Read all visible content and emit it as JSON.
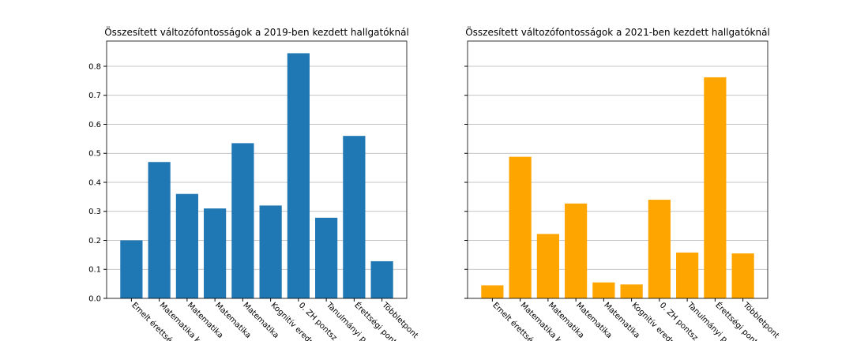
{
  "chart_data": [
    {
      "type": "bar",
      "title": "Összesített változófontosságok a 2019-ben kezdett hallgatóknál",
      "categories": [
        "Emelt érettségi",
        "Matematika k",
        "Matematika",
        "Matematika",
        "Matematika",
        "Kognitív eredm",
        "0. ZH pontsz",
        "Tanulmányi p",
        "Érettségi pont",
        "Többletpont"
      ],
      "values": [
        0.2,
        0.47,
        0.36,
        0.31,
        0.535,
        0.32,
        0.845,
        0.278,
        0.56,
        0.128
      ],
      "color": "#1f77b4",
      "ylim": [
        0,
        0.887
      ],
      "yticks": [
        {
          "value": 0,
          "label": "0.0"
        },
        0.1,
        0.2,
        0.3,
        0.4,
        0.5,
        0.6,
        0.7,
        0.8
      ],
      "grid": true
    },
    {
      "type": "bar",
      "title": "Összesített változófontosságok a 2021-ben kezdett hallgatóknál",
      "categories": [
        "Emelt érettségi",
        "Matematika k",
        "Matematika",
        "Matematika",
        "Matematika",
        "Kognitív eredm",
        "0. ZH pontsz",
        "Tanulmányi p",
        "Érettségi pont",
        "Többletpont"
      ],
      "values": [
        0.045,
        0.488,
        0.222,
        0.327,
        0.055,
        0.048,
        0.34,
        0.158,
        0.762,
        0.155
      ],
      "color": "#ffa500",
      "ylim": [
        0,
        0.887
      ],
      "yticks": [
        0,
        0.1,
        0.2,
        0.3,
        0.4,
        0.5,
        0.6,
        0.7,
        0.8
      ],
      "grid": true
    }
  ]
}
